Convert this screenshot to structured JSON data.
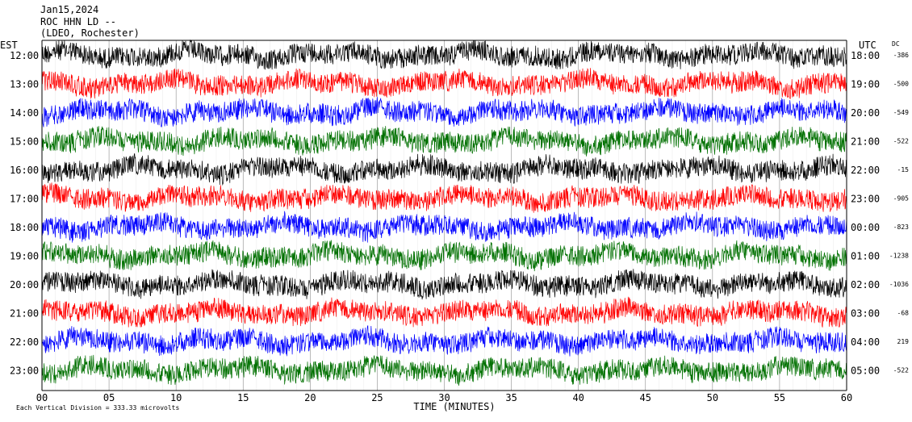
{
  "header": {
    "date": "Jan15,2024",
    "station": "ROC HHN LD --",
    "location": "(LDEO, Rochester)"
  },
  "axis_labels": {
    "left_timezone": "EST",
    "right_timezone": "UTC",
    "dc_header": "DC"
  },
  "footer": {
    "scale_note": "Each Vertical Division =  333.33 microvolts"
  },
  "colors": {
    "trace_cycle": [
      "#000000",
      "#ff0000",
      "#0000ff",
      "#007000"
    ],
    "grid": "#000000",
    "background": "#ffffff"
  },
  "chart_data": {
    "type": "line",
    "title": "ROC HHN LD --",
    "xlabel": "TIME (MINUTES)",
    "ylabel": "",
    "xlim": [
      0,
      60
    ],
    "x_ticks": [
      "00",
      "05",
      "10",
      "15",
      "20",
      "25",
      "30",
      "35",
      "40",
      "45",
      "50",
      "55",
      "60"
    ],
    "grid": true,
    "rows": [
      {
        "est": "12:00",
        "utc": "18:00",
        "dc": "-386",
        "color": "#000000"
      },
      {
        "est": "13:00",
        "utc": "19:00",
        "dc": "-500",
        "color": "#ff0000"
      },
      {
        "est": "14:00",
        "utc": "20:00",
        "dc": "-549",
        "color": "#0000ff"
      },
      {
        "est": "15:00",
        "utc": "21:00",
        "dc": "-522",
        "color": "#007000"
      },
      {
        "est": "16:00",
        "utc": "22:00",
        "dc": "-15",
        "color": "#000000"
      },
      {
        "est": "17:00",
        "utc": "23:00",
        "dc": "-905",
        "color": "#ff0000"
      },
      {
        "est": "18:00",
        "utc": "00:00",
        "dc": "-823",
        "color": "#0000ff"
      },
      {
        "est": "19:00",
        "utc": "01:00",
        "dc": "-1238",
        "color": "#007000"
      },
      {
        "est": "20:00",
        "utc": "02:00",
        "dc": "-1036",
        "color": "#000000"
      },
      {
        "est": "21:00",
        "utc": "03:00",
        "dc": "-68",
        "color": "#ff0000"
      },
      {
        "est": "22:00",
        "utc": "04:00",
        "dc": "219",
        "color": "#0000ff"
      },
      {
        "est": "23:00",
        "utc": "05:00",
        "dc": "-522",
        "color": "#007000"
      }
    ]
  }
}
